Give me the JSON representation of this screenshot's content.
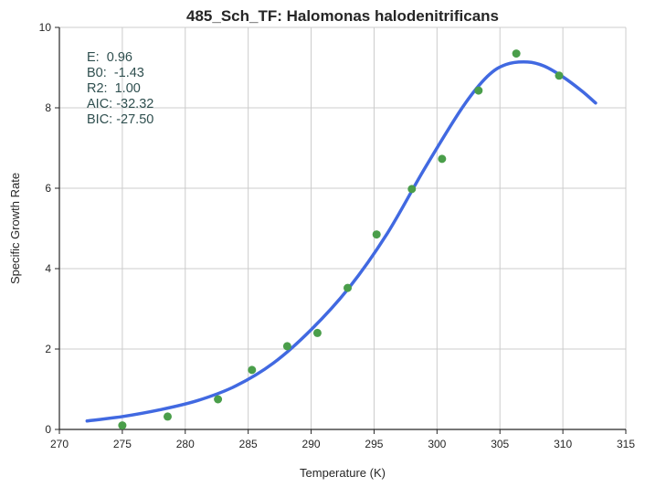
{
  "chart_data": {
    "type": "scatter",
    "title": "485_Sch_TF: Halomonas halodenitrificans",
    "xlabel": "Temperature (K)",
    "ylabel": "Specific Growth Rate",
    "xlim": [
      270,
      315
    ],
    "ylim": [
      0,
      10
    ],
    "xticks": [
      "270",
      "275",
      "280",
      "285",
      "290",
      "295",
      "300",
      "305",
      "310",
      "315"
    ],
    "yticks": [
      "0",
      "2",
      "4",
      "6",
      "8",
      "10"
    ],
    "grid": true,
    "colors": {
      "points": "#4a9e4a",
      "curve": "#4169e1",
      "stats_text": "#2f4f4f"
    },
    "points": {
      "x": [
        275.0,
        278.6,
        282.6,
        285.3,
        288.1,
        290.5,
        292.9,
        295.2,
        298.0,
        300.4,
        303.3,
        306.3,
        309.7
      ],
      "y": [
        0.1,
        0.32,
        0.75,
        1.48,
        2.07,
        2.4,
        3.52,
        4.85,
        5.98,
        6.73,
        8.43,
        9.35,
        8.8
      ]
    },
    "fit_curve": {
      "x": [
        272.2,
        275,
        278,
        281,
        284,
        287,
        290,
        293,
        296,
        299,
        302,
        304,
        305.5,
        307.2,
        308.5,
        310,
        311.5,
        312.6
      ],
      "y": [
        0.21,
        0.32,
        0.49,
        0.72,
        1.08,
        1.65,
        2.48,
        3.52,
        4.85,
        6.48,
        8.0,
        8.78,
        9.08,
        9.14,
        9.04,
        8.77,
        8.42,
        8.12
      ]
    },
    "annotations": [
      "E:  0.96",
      "B0:  -1.43",
      "R2:  1.00",
      "AIC: -32.32",
      "BIC: -27.50"
    ]
  }
}
